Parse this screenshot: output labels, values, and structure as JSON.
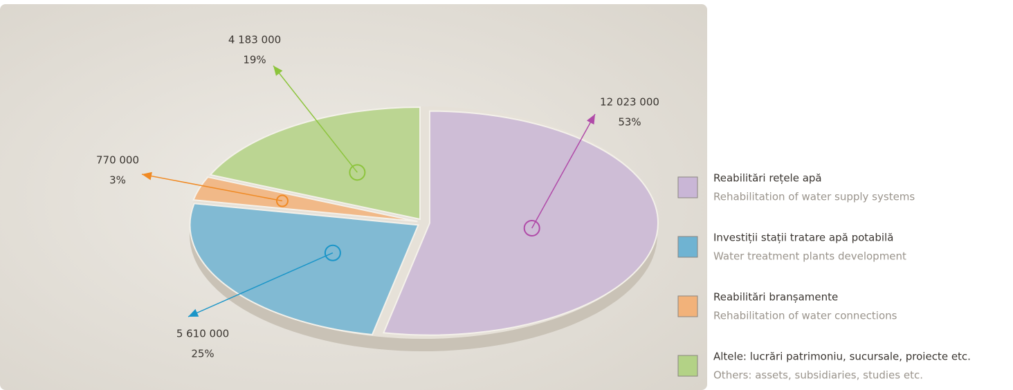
{
  "chart_data": {
    "type": "pie",
    "categories": [
      "Reabilitări rețele apă",
      "Investiții stații tratare apă potabilă",
      "Reabilitări branșamente",
      "Altele: lucrări patrimoniu, sucursale, proiecte etc."
    ],
    "categories_en": [
      "Rehabilitation of water supply systems",
      "Water treatment  plants development",
      "Rehabilitation of water connections",
      "Others: assets, subsidiaries, studies etc."
    ],
    "values": [
      12023000,
      5610000,
      770000,
      4183000
    ],
    "value_labels": [
      "12 023 000",
      "5 610 000",
      "770 000",
      "4 183 000"
    ],
    "shares": [
      53,
      25,
      3,
      19
    ],
    "share_labels": [
      "53%",
      "25%",
      "3%",
      "19%"
    ],
    "colors": [
      "#c9b6d6",
      "#6fb3d2",
      "#f2b27a",
      "#b3d286"
    ],
    "marker_colors": [
      "#b04aa8",
      "#1a95c8",
      "#f08a24",
      "#8cc43c"
    ]
  }
}
